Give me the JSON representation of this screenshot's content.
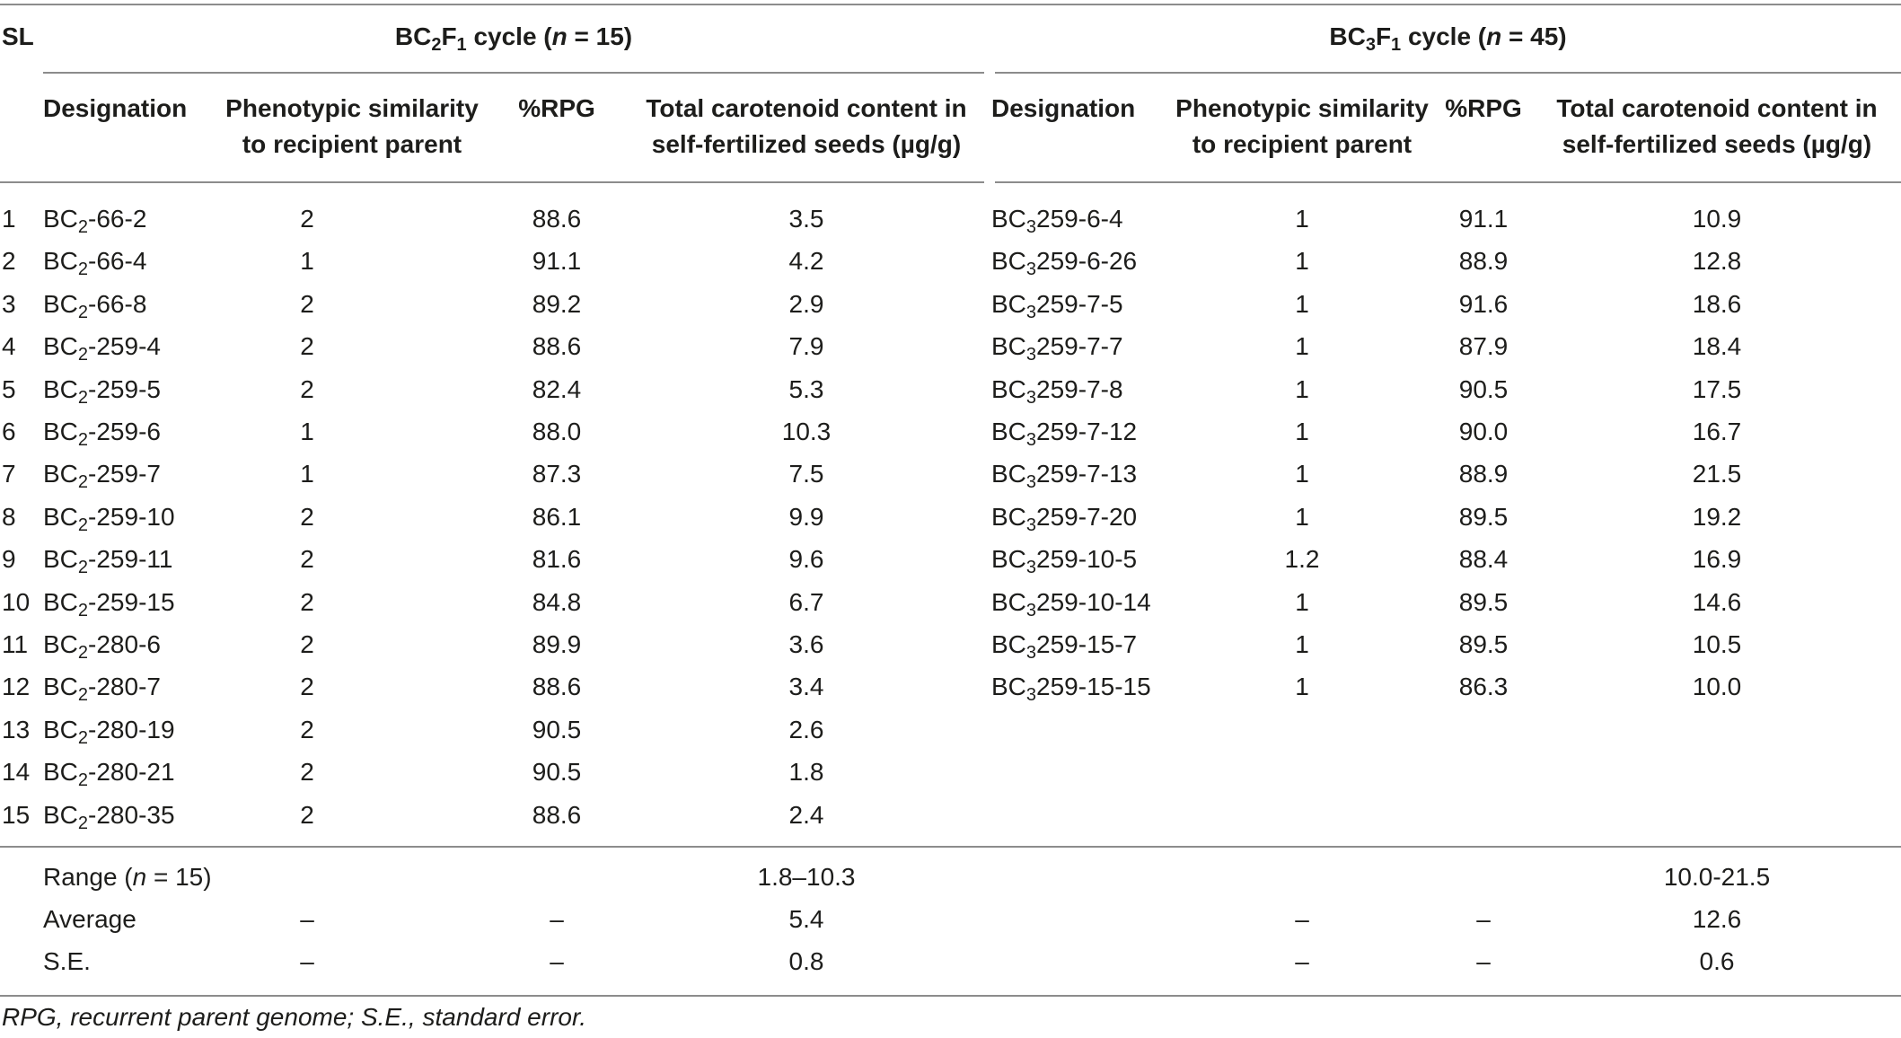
{
  "headers": {
    "sl": "SL",
    "bc2_group": {
      "pre": "BC",
      "sub1": "2",
      "mid": "F",
      "sub2": "1",
      "post": " cycle (",
      "n": "n",
      "rest": " = 15)"
    },
    "bc3_group": {
      "pre": "BC",
      "sub1": "3",
      "mid": "F",
      "sub2": "1",
      "post": " cycle (",
      "n": "n",
      "rest": " = 45)"
    },
    "designation": "Designation",
    "phenotypic_line1": "Phenotypic similarity",
    "phenotypic_line2": "to recipient parent",
    "rpg": "%RPG",
    "carotenoid_line1": "Total carotenoid content in",
    "carotenoid_line2": "self-fertilized seeds (µg/g)"
  },
  "bc2_rows": [
    {
      "sl": "1",
      "prefix": "BC",
      "sub": "2",
      "suffix": "-66-2",
      "pheno": "2",
      "rpg": "88.6",
      "carot": "3.5"
    },
    {
      "sl": "2",
      "prefix": "BC",
      "sub": "2",
      "suffix": "-66-4",
      "pheno": "1",
      "rpg": "91.1",
      "carot": "4.2"
    },
    {
      "sl": "3",
      "prefix": "BC",
      "sub": "2",
      "suffix": "-66-8",
      "pheno": "2",
      "rpg": "89.2",
      "carot": "2.9"
    },
    {
      "sl": "4",
      "prefix": "BC",
      "sub": "2",
      "suffix": "-259-4",
      "pheno": "2",
      "rpg": "88.6",
      "carot": "7.9"
    },
    {
      "sl": "5",
      "prefix": "BC",
      "sub": "2",
      "suffix": "-259-5",
      "pheno": "2",
      "rpg": "82.4",
      "carot": "5.3"
    },
    {
      "sl": "6",
      "prefix": "BC",
      "sub": "2",
      "suffix": "-259-6",
      "pheno": "1",
      "rpg": "88.0",
      "carot": "10.3"
    },
    {
      "sl": "7",
      "prefix": "BC",
      "sub": "2",
      "suffix": "-259-7",
      "pheno": "1",
      "rpg": "87.3",
      "carot": "7.5"
    },
    {
      "sl": "8",
      "prefix": "BC",
      "sub": "2",
      "suffix": "-259-10",
      "pheno": "2",
      "rpg": "86.1",
      "carot": "9.9"
    },
    {
      "sl": "9",
      "prefix": "BC",
      "sub": "2",
      "suffix": "-259-11",
      "pheno": "2",
      "rpg": "81.6",
      "carot": "9.6"
    },
    {
      "sl": "10",
      "prefix": "BC",
      "sub": "2",
      "suffix": "-259-15",
      "pheno": "2",
      "rpg": "84.8",
      "carot": "6.7"
    },
    {
      "sl": "11",
      "prefix": "BC",
      "sub": "2",
      "suffix": "-280-6",
      "pheno": "2",
      "rpg": "89.9",
      "carot": "3.6"
    },
    {
      "sl": "12",
      "prefix": "BC",
      "sub": "2",
      "suffix": "-280-7",
      "pheno": "2",
      "rpg": "88.6",
      "carot": "3.4"
    },
    {
      "sl": "13",
      "prefix": "BC",
      "sub": "2",
      "suffix": "-280-19",
      "pheno": "2",
      "rpg": "90.5",
      "carot": "2.6"
    },
    {
      "sl": "14",
      "prefix": "BC",
      "sub": "2",
      "suffix": "-280-21",
      "pheno": "2",
      "rpg": "90.5",
      "carot": "1.8"
    },
    {
      "sl": "15",
      "prefix": "BC",
      "sub": "2",
      "suffix": "-280-35",
      "pheno": "2",
      "rpg": "88.6",
      "carot": "2.4"
    }
  ],
  "bc3_rows": [
    {
      "prefix": "BC",
      "sub": "3",
      "suffix": "259-6-4",
      "pheno": "1",
      "rpg": "91.1",
      "carot": "10.9"
    },
    {
      "prefix": "BC",
      "sub": "3",
      "suffix": "259-6-26",
      "pheno": "1",
      "rpg": "88.9",
      "carot": "12.8"
    },
    {
      "prefix": "BC",
      "sub": "3",
      "suffix": "259-7-5",
      "pheno": "1",
      "rpg": "91.6",
      "carot": "18.6"
    },
    {
      "prefix": "BC",
      "sub": "3",
      "suffix": "259-7-7",
      "pheno": "1",
      "rpg": "87.9",
      "carot": "18.4"
    },
    {
      "prefix": "BC",
      "sub": "3",
      "suffix": "259-7-8",
      "pheno": "1",
      "rpg": "90.5",
      "carot": "17.5"
    },
    {
      "prefix": "BC",
      "sub": "3",
      "suffix": "259-7-12",
      "pheno": "1",
      "rpg": "90.0",
      "carot": "16.7"
    },
    {
      "prefix": "BC",
      "sub": "3",
      "suffix": "259-7-13",
      "pheno": "1",
      "rpg": "88.9",
      "carot": "21.5"
    },
    {
      "prefix": "BC",
      "sub": "3",
      "suffix": "259-7-20",
      "pheno": "1",
      "rpg": "89.5",
      "carot": "19.2"
    },
    {
      "prefix": "BC",
      "sub": "3",
      "suffix": "259-10-5",
      "pheno": "1.2",
      "rpg": "88.4",
      "carot": "16.9"
    },
    {
      "prefix": "BC",
      "sub": "3",
      "suffix": "259-10-14",
      "pheno": "1",
      "rpg": "89.5",
      "carot": "14.6"
    },
    {
      "prefix": "BC",
      "sub": "3",
      "suffix": "259-15-7",
      "pheno": "1",
      "rpg": "89.5",
      "carot": "10.5"
    },
    {
      "prefix": "BC",
      "sub": "3",
      "suffix": "259-15-15",
      "pheno": "1",
      "rpg": "86.3",
      "carot": "10.0"
    }
  ],
  "summary": {
    "range_label_pre": "Range (",
    "range_label_n": "n",
    "range_label_post": " = 15)",
    "range_bc2": "1.8–10.3",
    "range_bc3": "10.0-21.5",
    "avg_label": "Average",
    "avg_bc2_pheno": "–",
    "avg_bc2_rpg": "–",
    "avg_bc2_carot": "5.4",
    "avg_bc3_pheno": "–",
    "avg_bc3_rpg": "–",
    "avg_bc3_carot": "12.6",
    "se_label": "S.E.",
    "se_bc2_pheno": "–",
    "se_bc2_rpg": "–",
    "se_bc2_carot": "0.8",
    "se_bc3_pheno": "–",
    "se_bc3_rpg": "–",
    "se_bc3_carot": "0.6"
  },
  "footnote": "RPG, recurrent parent genome; S.E., standard error."
}
